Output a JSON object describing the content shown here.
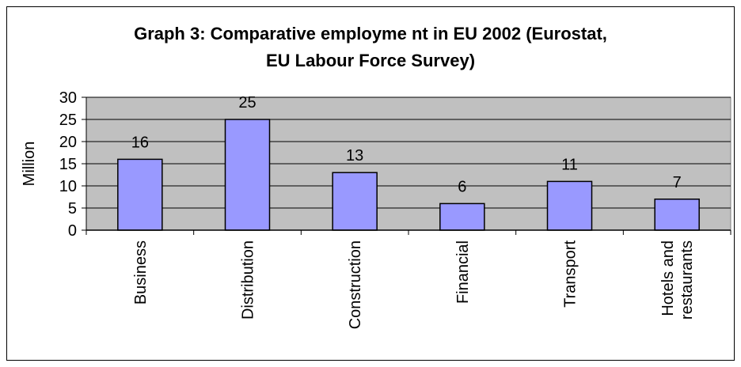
{
  "chart_data": {
    "type": "bar",
    "title_line1": "Graph 3: Comparative employme nt in EU 2002 (Eurostat,",
    "title_line2": "EU Labour Force Survey)",
    "xlabel": "",
    "ylabel": "Million",
    "ylim": [
      0,
      30
    ],
    "yticks": [
      0,
      5,
      10,
      15,
      20,
      25,
      30
    ],
    "grid": true,
    "categories": [
      [
        "Business"
      ],
      [
        "Distribution"
      ],
      [
        "Construction"
      ],
      [
        "Financial"
      ],
      [
        "Transport"
      ],
      [
        "Hotels and",
        "restaurants"
      ]
    ],
    "values": [
      16,
      25,
      13,
      6,
      11,
      7
    ],
    "colors": {
      "bar": "#9999ff",
      "plot_bg": "#c0c0c0",
      "grid": "#000000"
    }
  }
}
